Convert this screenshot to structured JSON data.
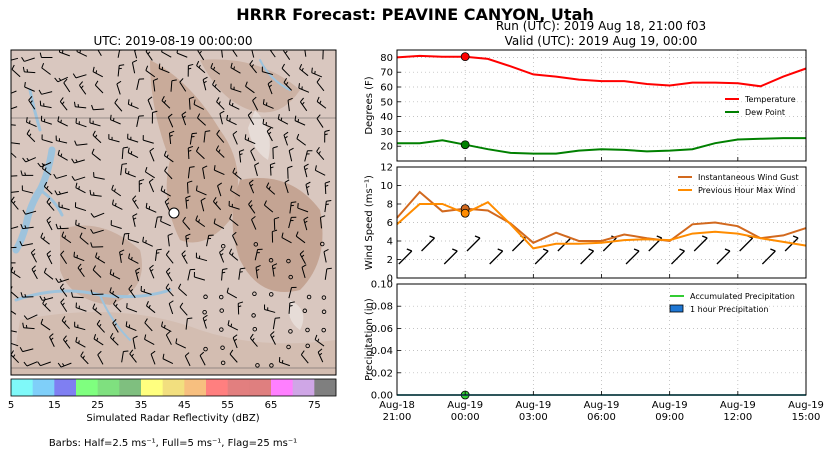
{
  "header": {
    "title": "HRRR Forecast: PEAVINE CANYON, Utah",
    "run_line": "Run (UTC): 2019 Aug 18, 21:00 f03",
    "valid_line": "Valid (UTC): 2019 Aug 19, 00:00"
  },
  "map": {
    "title": "UTC: 2019-08-19 00:00:00",
    "colorbar_label": "Simulated Radar Reflectivity (dBZ)",
    "colorbar_ticks": [
      "5",
      "15",
      "25",
      "35",
      "45",
      "55",
      "65",
      "75"
    ],
    "colorbar_colors": [
      "#7ff9f9",
      "#7fcff9",
      "#7f7ff2",
      "#7fff7f",
      "#7fe07f",
      "#7fbf7f",
      "#ffff7f",
      "#f2df7f",
      "#f7bf7f",
      "#ff7f7f",
      "#e27f7f",
      "#df7f7f",
      "#ff7fff",
      "#cfa6e6",
      "#7f7f7f"
    ],
    "barb_note": "Barbs: Half=2.5 ms⁻¹, Full=5 ms⁻¹, Flag=25 ms⁻¹"
  },
  "colors": {
    "temperature": "#ff0000",
    "dew_point": "#008000",
    "gust": "#d2691e",
    "max_wind": "#ff8c00",
    "accum_precip": "#33cc33",
    "hourly_precip": "#1f77d4"
  },
  "chart_data": [
    {
      "type": "line",
      "ylabel": "Degrees (F)",
      "ylim": [
        10,
        85
      ],
      "yticks": [
        "20",
        "30",
        "40",
        "50",
        "60",
        "70",
        "80"
      ],
      "x": [
        -3,
        -2,
        -1,
        0,
        1,
        2,
        3,
        4,
        5,
        6,
        7,
        8,
        9,
        10,
        11,
        12,
        13,
        14,
        15
      ],
      "series": [
        {
          "name": "Temperature",
          "color": "#ff0000",
          "values": [
            80,
            81,
            80.5,
            80.5,
            79,
            74,
            68.5,
            67,
            65,
            64,
            64,
            62,
            61,
            63,
            63,
            62.5,
            60.5,
            67,
            72.5
          ]
        },
        {
          "name": "Dew Point",
          "color": "#008000",
          "values": [
            22,
            22,
            24,
            21,
            18,
            15.5,
            15,
            15,
            17,
            18,
            17.5,
            16.5,
            17,
            18,
            22,
            24.5,
            25,
            25.5,
            25.5
          ]
        }
      ],
      "marker_x": 0,
      "legend": "right",
      "grid": true
    },
    {
      "type": "line",
      "ylabel": "Wind Speed (ms⁻¹)",
      "ylim": [
        0,
        12
      ],
      "yticks": [
        "0",
        "2",
        "4",
        "6",
        "8",
        "10",
        "12"
      ],
      "x": [
        -3,
        -2,
        -1,
        0,
        1,
        2,
        3,
        4,
        5,
        6,
        7,
        8,
        9,
        10,
        11,
        12,
        13,
        14,
        15
      ],
      "series": [
        {
          "name": "Instantaneous Wind Gust",
          "color": "#d2691e",
          "values": [
            6.5,
            9.3,
            7.2,
            7.5,
            7.3,
            5.9,
            3.8,
            4.9,
            4.0,
            4.0,
            4.7,
            4.3,
            4.0,
            5.8,
            6.0,
            5.6,
            4.3,
            4.6,
            5.4
          ]
        },
        {
          "name": "Previous Hour Max Wind",
          "color": "#ff8c00",
          "values": [
            5.8,
            8.0,
            8.0,
            7.0,
            8.2,
            5.8,
            3.2,
            3.7,
            3.7,
            3.8,
            4.1,
            4.2,
            4.1,
            4.8,
            5.0,
            4.8,
            4.3,
            3.9,
            3.5
          ]
        }
      ],
      "marker_x": 0,
      "legend": "top-right",
      "grid": true
    },
    {
      "type": "line",
      "ylabel": "Precipitation (in)",
      "ylim": [
        0,
        0.1
      ],
      "yticks": [
        "0.00",
        "0.02",
        "0.04",
        "0.06",
        "0.08",
        "0.10"
      ],
      "x": [
        -3,
        -2,
        -1,
        0,
        1,
        2,
        3,
        4,
        5,
        6,
        7,
        8,
        9,
        10,
        11,
        12,
        13,
        14,
        15
      ],
      "series": [
        {
          "name": "Accumulated Precipitation",
          "color": "#33cc33",
          "values": [
            0,
            0,
            0,
            0,
            0,
            0,
            0,
            0,
            0,
            0,
            0,
            0,
            0,
            0,
            0,
            0,
            0,
            0,
            0
          ]
        },
        {
          "name": "1 hour Precipitation",
          "color": "#1f77d4",
          "values": [
            0,
            0,
            0,
            0,
            0,
            0,
            0,
            0,
            0,
            0,
            0,
            0,
            0,
            0,
            0,
            0,
            0,
            0,
            0
          ]
        }
      ],
      "marker_x": 0,
      "legend": "top-right",
      "grid": true
    }
  ],
  "x_axis": {
    "ticks": [
      {
        "x": -3,
        "l1": "Aug-18",
        "l2": "21:00"
      },
      {
        "x": 0,
        "l1": "Aug-19",
        "l2": "00:00"
      },
      {
        "x": 3,
        "l1": "Aug-19",
        "l2": "03:00"
      },
      {
        "x": 6,
        "l1": "Aug-19",
        "l2": "06:00"
      },
      {
        "x": 9,
        "l1": "Aug-19",
        "l2": "09:00"
      },
      {
        "x": 12,
        "l1": "Aug-19",
        "l2": "12:00"
      },
      {
        "x": 15,
        "l1": "Aug-19",
        "l2": "15:00"
      }
    ]
  }
}
